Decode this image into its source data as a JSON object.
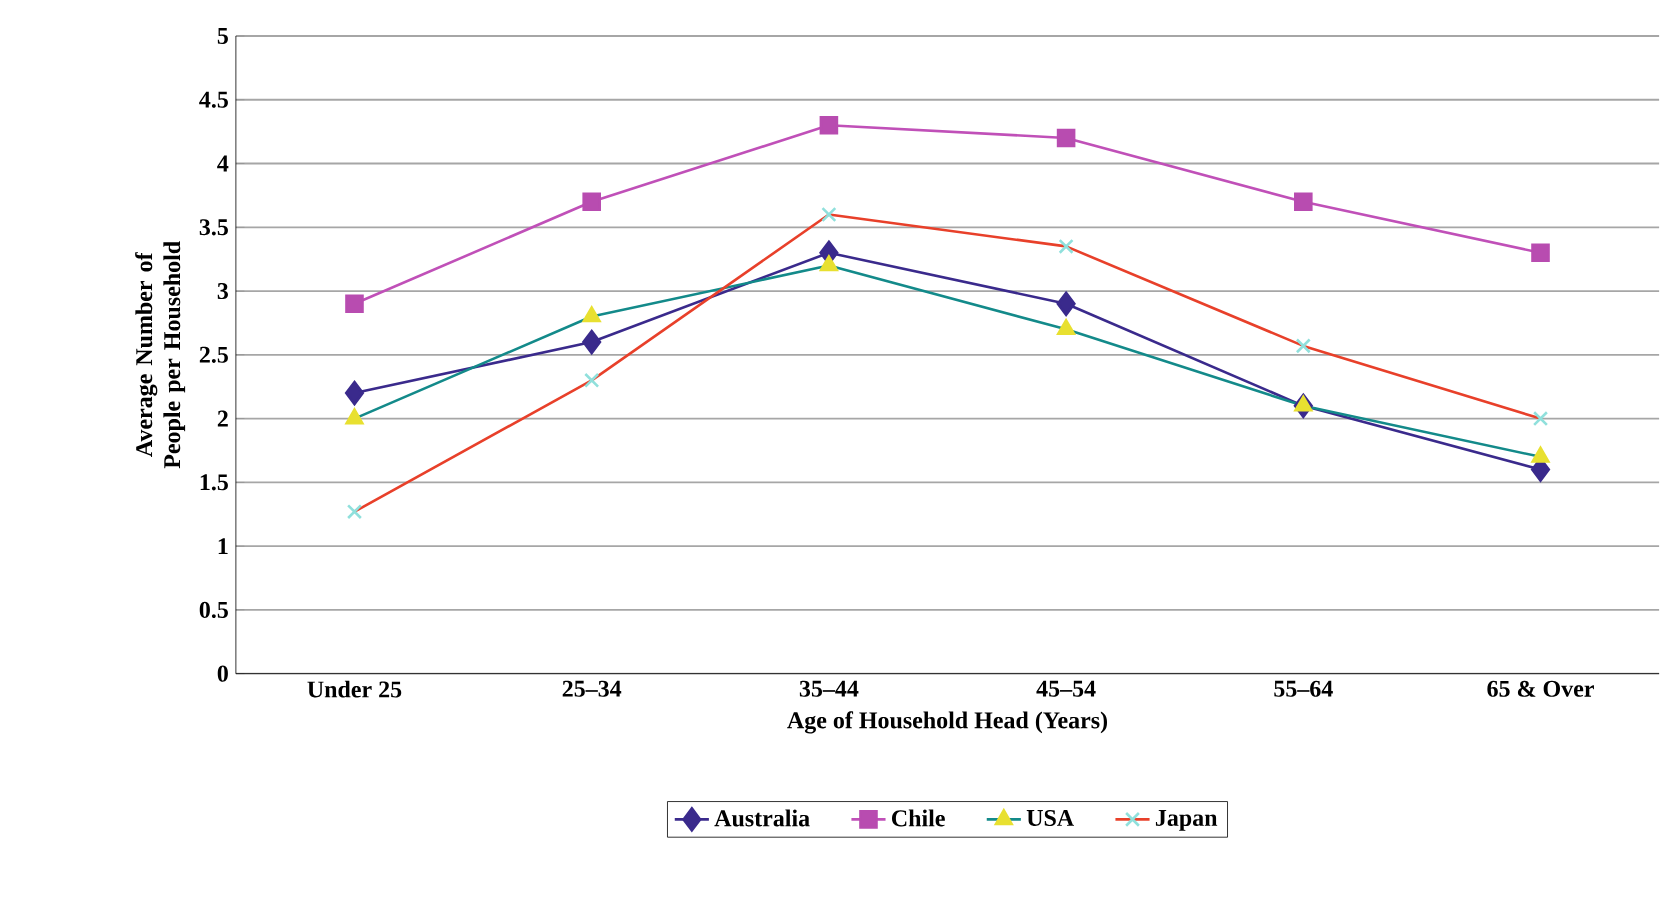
{
  "chart_data": {
    "type": "line",
    "xlabel": "Age of Household Head (Years)",
    "ylabel": "Average Number of People per Household",
    "categories": [
      "Under 25",
      "25–34",
      "35–44",
      "45–54",
      "55–64",
      "65 & Over"
    ],
    "series": [
      {
        "name": "Australia",
        "color": "#3a2a8c",
        "marker": "diamond",
        "colors": [
          "#3a2a8c",
          "#3a2a8c",
          "#3a2a8c",
          "#3a2a8c",
          "#3a2a8c",
          "#3a2a8c"
        ],
        "values": [
          2.2,
          2.6,
          3.3,
          2.9,
          2.1,
          1.6
        ]
      },
      {
        "name": "Chile",
        "color": "#c050b8",
        "marker": "square",
        "colors": [
          "#b84cb0",
          "#b84cb0",
          "#b84cb0",
          "#b84cb0",
          "#b84cb0",
          "#b84cb0"
        ],
        "values": [
          2.9,
          3.7,
          4.3,
          4.2,
          3.7,
          3.3
        ]
      },
      {
        "name": "USA",
        "color": "#138a8a",
        "marker": "triangle",
        "colors": [
          "#e8e030",
          "#e8e030",
          "#e8e030",
          "#e8e030",
          "#e8e030",
          "#e8e030"
        ],
        "values": [
          2.0,
          2.8,
          3.2,
          2.7,
          2.1,
          1.7
        ]
      },
      {
        "name": "Japan",
        "color": "#e8402a",
        "marker": "cross",
        "colors": [
          "#90e0dc",
          "#90e0dc",
          "#90e0dc",
          "#90e0dc",
          "#90e0dc",
          "#90e0dc"
        ],
        "values": [
          1.27,
          2.3,
          3.6,
          3.35,
          2.57,
          2.0
        ]
      }
    ],
    "ylim": [
      0,
      5
    ],
    "yticks": [
      0,
      0.5,
      1,
      1.5,
      2,
      2.5,
      3,
      3.5,
      4,
      4.5,
      5
    ],
    "grid": "y",
    "legend": "bottom"
  }
}
